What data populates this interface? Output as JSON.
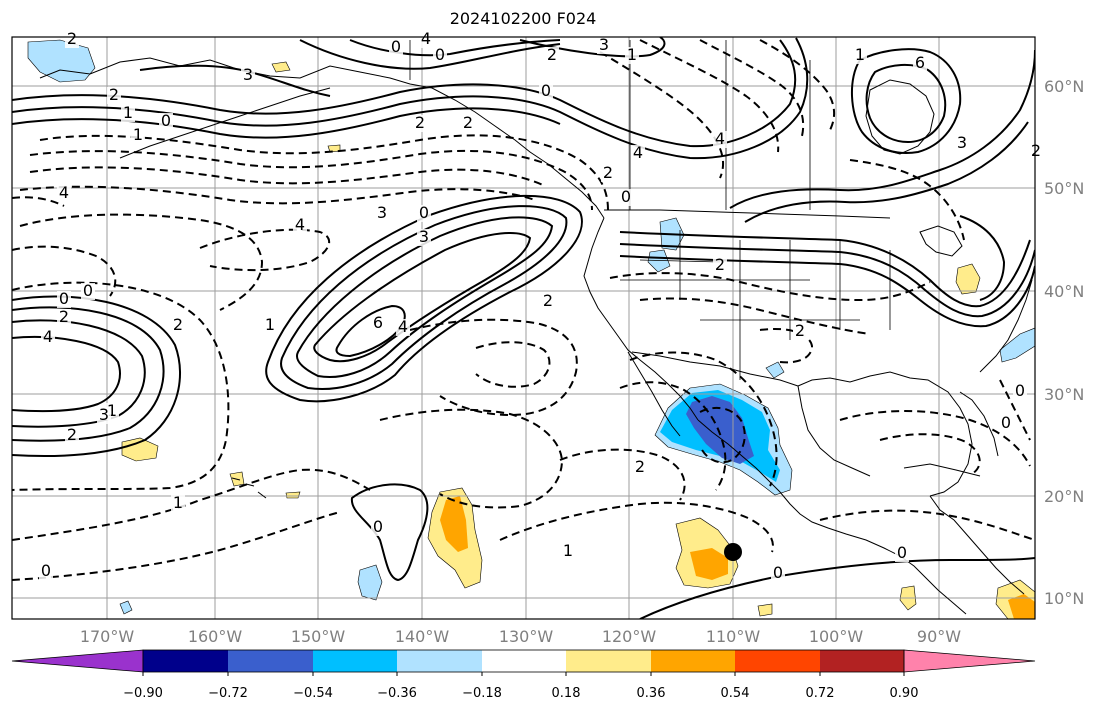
{
  "title": "2024102200 F024",
  "lon_labels": [
    "170°W",
    "160°W",
    "150°W",
    "140°W",
    "130°W",
    "120°W",
    "110°W",
    "100°W",
    "90°W"
  ],
  "lat_labels": [
    "60°N",
    "50°N",
    "40°N",
    "30°N",
    "20°N",
    "10°N"
  ],
  "colorbar": {
    "colors": [
      "#9a32cd",
      "#00008b",
      "#3a5fcd",
      "#00bfff",
      "#b0e2ff",
      "#ffffff",
      "#ffec8b",
      "#ffa500",
      "#ff4500",
      "#b22222",
      "#ff82ab"
    ],
    "tick_labels": [
      "−0.90",
      "−0.72",
      "−0.54",
      "−0.36",
      "−0.18",
      "0.18",
      "0.36",
      "0.54",
      "0.72",
      "0.90"
    ]
  },
  "contour_labels": [
    {
      "t": "2"
    },
    {
      "t": "4"
    },
    {
      "t": "0"
    },
    {
      "t": "3"
    },
    {
      "t": "2"
    },
    {
      "t": "0"
    },
    {
      "t": "1"
    },
    {
      "t": "6"
    },
    {
      "t": "3"
    },
    {
      "t": "2"
    },
    {
      "t": "1"
    },
    {
      "t": "0"
    },
    {
      "t": "1"
    },
    {
      "t": "2"
    },
    {
      "t": "2"
    },
    {
      "t": "0"
    },
    {
      "t": "4"
    },
    {
      "t": "4"
    },
    {
      "t": "4"
    },
    {
      "t": "4"
    },
    {
      "t": "3"
    },
    {
      "t": "0"
    },
    {
      "t": "3"
    },
    {
      "t": "2"
    },
    {
      "t": "0"
    },
    {
      "t": "2"
    },
    {
      "t": "2"
    },
    {
      "t": "6"
    },
    {
      "t": "4"
    },
    {
      "t": "1"
    },
    {
      "t": "0"
    },
    {
      "t": "0"
    },
    {
      "t": "2"
    },
    {
      "t": "4"
    },
    {
      "t": "1"
    },
    {
      "t": "2"
    },
    {
      "t": "3"
    },
    {
      "t": "2"
    },
    {
      "t": "1"
    },
    {
      "t": "2"
    },
    {
      "t": "2"
    },
    {
      "t": "2"
    },
    {
      "t": "2"
    },
    {
      "t": "1"
    },
    {
      "t": "0"
    },
    {
      "t": "0"
    },
    {
      "t": "0"
    },
    {
      "t": "0"
    },
    {
      "t": "0"
    },
    {
      "t": "0"
    },
    {
      "t": "3"
    },
    {
      "t": "1"
    }
  ]
}
